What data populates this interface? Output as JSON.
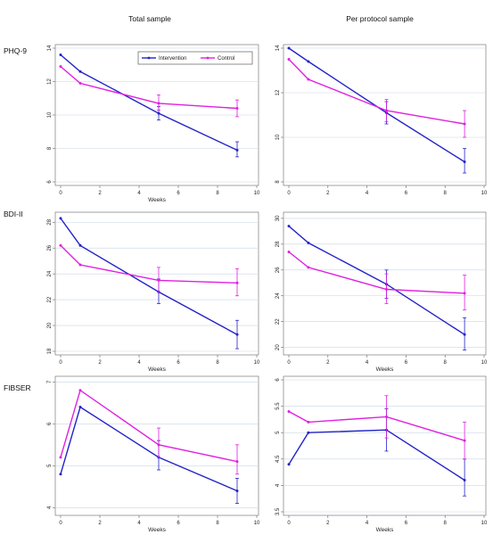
{
  "column_titles": [
    "Total sample",
    "Per protocol sample"
  ],
  "row_labels": [
    "PHQ-9",
    "BDI-II",
    "FIBSER"
  ],
  "colors": {
    "intervention": "#2323c8",
    "control": "#e020e0",
    "grid": "#c8d6e6"
  },
  "legend": {
    "placement": "top-right",
    "entries": [
      "Intervention",
      "Control"
    ]
  },
  "chart_data": [
    {
      "type": "line",
      "row": 0,
      "col": 0,
      "xlabel": "Weeks",
      "ylabel": "",
      "x": [
        0,
        1,
        5,
        9
      ],
      "xlim": [
        0,
        10
      ],
      "xticks": [
        0,
        2,
        4,
        6,
        8,
        10
      ],
      "ylim": [
        6,
        14
      ],
      "yticks": [
        6,
        8,
        10,
        12,
        14
      ],
      "grid": true,
      "show_legend": true,
      "series": [
        {
          "name": "Intervention",
          "values": [
            13.6,
            12.6,
            10.1,
            7.9
          ],
          "ci": [
            null,
            null,
            [
              9.7,
              10.5
            ],
            [
              7.5,
              8.4
            ]
          ]
        },
        {
          "name": "Control",
          "values": [
            12.9,
            11.9,
            10.7,
            10.4
          ],
          "ci": [
            null,
            null,
            [
              10.3,
              11.2
            ],
            [
              9.9,
              10.9
            ]
          ]
        }
      ]
    },
    {
      "type": "line",
      "row": 0,
      "col": 1,
      "xlabel": "",
      "ylabel": "",
      "x": [
        0,
        1,
        5,
        9
      ],
      "xlim": [
        0,
        10
      ],
      "xticks": [
        0,
        2,
        4,
        6,
        8,
        10
      ],
      "ylim": [
        8,
        14
      ],
      "yticks": [
        8,
        10,
        12,
        14
      ],
      "grid": true,
      "show_legend": false,
      "series": [
        {
          "name": "Intervention",
          "values": [
            14.0,
            13.4,
            11.1,
            8.9
          ],
          "ci": [
            null,
            null,
            [
              10.6,
              11.6
            ],
            [
              8.4,
              9.5
            ]
          ]
        },
        {
          "name": "Control",
          "values": [
            13.5,
            12.6,
            11.2,
            10.6
          ],
          "ci": [
            null,
            null,
            [
              10.7,
              11.7
            ],
            [
              10.0,
              11.2
            ]
          ]
        }
      ]
    },
    {
      "type": "line",
      "row": 1,
      "col": 0,
      "xlabel": "Weeks",
      "ylabel": "",
      "x": [
        0,
        1,
        5,
        9
      ],
      "xlim": [
        0,
        10
      ],
      "xticks": [
        0,
        2,
        4,
        6,
        8,
        10
      ],
      "ylim": [
        18,
        28.5
      ],
      "yticks": [
        18,
        20,
        22,
        24,
        26,
        28
      ],
      "grid": true,
      "show_legend": false,
      "series": [
        {
          "name": "Intervention",
          "values": [
            28.3,
            26.2,
            22.6,
            19.3
          ],
          "ci": [
            null,
            null,
            [
              21.7,
              23.6
            ],
            [
              18.2,
              20.4
            ]
          ]
        },
        {
          "name": "Control",
          "values": [
            26.2,
            24.7,
            23.5,
            23.3
          ],
          "ci": [
            null,
            null,
            [
              22.6,
              24.5
            ],
            [
              22.3,
              24.4
            ]
          ]
        }
      ]
    },
    {
      "type": "line",
      "row": 1,
      "col": 1,
      "xlabel": "Weeks",
      "ylabel": "",
      "x": [
        0,
        1,
        5,
        9
      ],
      "xlim": [
        0,
        10
      ],
      "xticks": [
        0,
        2,
        4,
        6,
        8,
        10
      ],
      "ylim": [
        19.7,
        30.2
      ],
      "yticks": [
        20,
        22,
        24,
        26,
        28,
        30
      ],
      "grid": true,
      "show_legend": false,
      "series": [
        {
          "name": "Intervention",
          "values": [
            29.4,
            28.1,
            24.9,
            21.0
          ],
          "ci": [
            null,
            null,
            [
              23.8,
              26.0
            ],
            [
              19.8,
              22.3
            ]
          ]
        },
        {
          "name": "Control",
          "values": [
            27.4,
            26.2,
            24.5,
            24.2
          ],
          "ci": [
            null,
            null,
            [
              23.4,
              25.7
            ],
            [
              22.9,
              25.6
            ]
          ]
        }
      ]
    },
    {
      "type": "line",
      "row": 2,
      "col": 0,
      "xlabel": "Weeks",
      "ylabel": "",
      "x": [
        0,
        1,
        5,
        9
      ],
      "xlim": [
        0,
        10
      ],
      "xticks": [
        0,
        2,
        4,
        6,
        8,
        10
      ],
      "ylim": [
        3.9,
        7.05
      ],
      "yticks": [
        4,
        5,
        6,
        7
      ],
      "grid": true,
      "show_legend": false,
      "series": [
        {
          "name": "Intervention",
          "values": [
            4.8,
            6.4,
            5.2,
            4.4
          ],
          "ci": [
            null,
            null,
            [
              4.9,
              5.6
            ],
            [
              4.1,
              4.7
            ]
          ]
        },
        {
          "name": "Control",
          "values": [
            5.2,
            6.8,
            5.5,
            5.1
          ],
          "ci": [
            null,
            null,
            [
              5.2,
              5.9
            ],
            [
              4.8,
              5.5
            ]
          ]
        }
      ]
    },
    {
      "type": "line",
      "row": 2,
      "col": 1,
      "xlabel": "Weeks",
      "ylabel": "",
      "x": [
        0,
        1,
        5,
        9
      ],
      "xlim": [
        0,
        10
      ],
      "xticks": [
        0,
        2,
        4,
        6,
        8,
        10
      ],
      "ylim": [
        3.5,
        6.0
      ],
      "yticks": [
        3.5,
        4,
        4.5,
        5,
        5.5,
        6
      ],
      "grid": true,
      "show_legend": false,
      "series": [
        {
          "name": "Intervention",
          "values": [
            4.4,
            5.0,
            5.05,
            4.1
          ],
          "ci": [
            null,
            null,
            [
              4.65,
              5.45
            ],
            [
              3.8,
              4.5
            ]
          ]
        },
        {
          "name": "Control",
          "values": [
            5.4,
            5.2,
            5.3,
            4.85
          ],
          "ci": [
            null,
            null,
            [
              4.9,
              5.7
            ],
            [
              4.5,
              5.2
            ]
          ]
        }
      ]
    }
  ]
}
